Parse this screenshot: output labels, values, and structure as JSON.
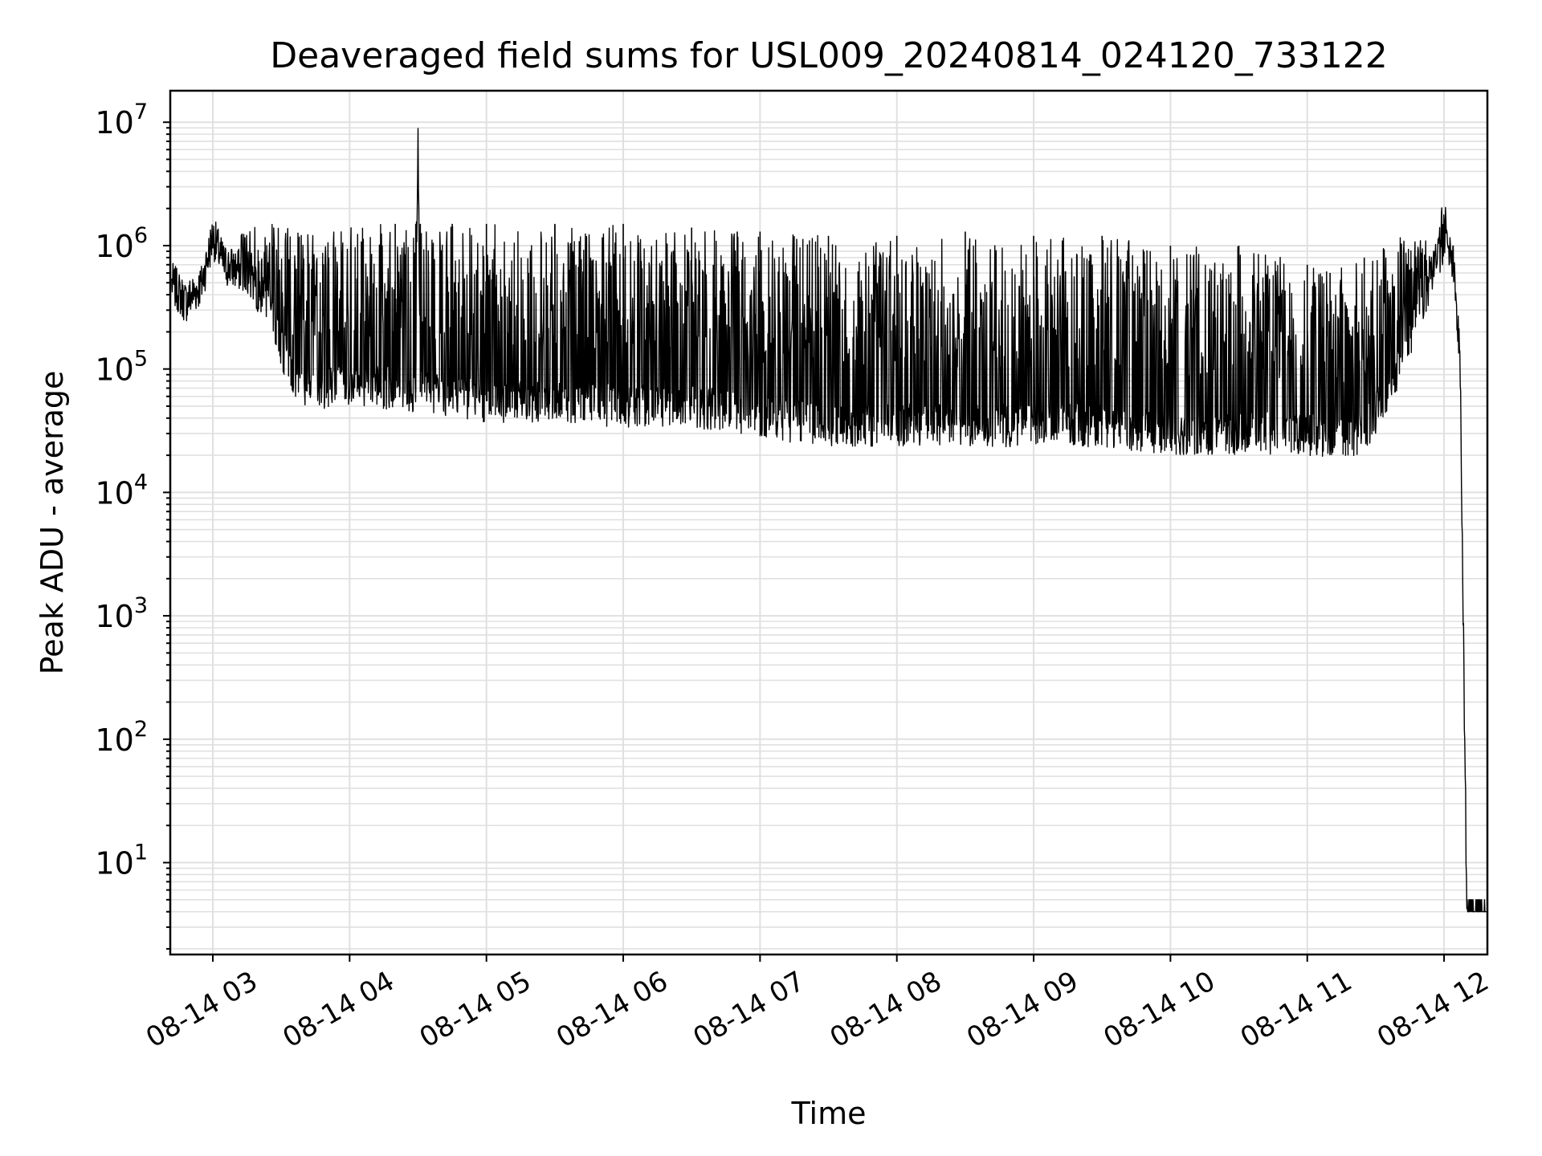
{
  "chart_data": {
    "type": "line",
    "title": "Deaveraged field sums for USL009_20240814_024120_733122",
    "xlabel": "Time",
    "ylabel": "Peak ADU - average",
    "xscale": "time",
    "yscale": "log",
    "xlim": [
      "2024-08-14 02:41:20",
      "2024-08-14 12:19:00"
    ],
    "ylim": [
      1.8,
      18000000
    ],
    "grid": true,
    "line_color": "#000000",
    "grid_color": "#e0e0e0",
    "x_ticks": [
      "08-14 03",
      "08-14 04",
      "08-14 05",
      "08-14 06",
      "08-14 07",
      "08-14 08",
      "08-14 09",
      "08-14 10",
      "08-14 11",
      "08-14 12"
    ],
    "y_ticks": [
      {
        "value": 10,
        "base": "10",
        "exp": "1"
      },
      {
        "value": 100,
        "base": "10",
        "exp": "2"
      },
      {
        "value": 1000,
        "base": "10",
        "exp": "3"
      },
      {
        "value": 10000,
        "base": "10",
        "exp": "4"
      },
      {
        "value": 100000,
        "base": "10",
        "exp": "5"
      },
      {
        "value": 1000000,
        "base": "10",
        "exp": "6"
      },
      {
        "value": 10000000,
        "base": "10",
        "exp": "7"
      }
    ],
    "series": [
      {
        "x": [
          "2024-08-14 02:42",
          "2024-08-14 02:48",
          "2024-08-14 02:55",
          "2024-08-14 03:00",
          "2024-08-14 03:05",
          "2024-08-14 03:15",
          "2024-08-14 03:25",
          "2024-08-14 03:35",
          "2024-08-14 03:45",
          "2024-08-14 04:00",
          "2024-08-14 04:20",
          "2024-08-14 04:29",
          "2024-08-14 04:30",
          "2024-08-14 04:31",
          "2024-08-14 04:45",
          "2024-08-14 05:00",
          "2024-08-14 05:30",
          "2024-08-14 06:00",
          "2024-08-14 06:30",
          "2024-08-14 06:50",
          "2024-08-14 07:00",
          "2024-08-14 07:30",
          "2024-08-14 08:00",
          "2024-08-14 08:30",
          "2024-08-14 09:00",
          "2024-08-14 09:30",
          "2024-08-14 10:00",
          "2024-08-14 10:30",
          "2024-08-14 11:00",
          "2024-08-14 11:10",
          "2024-08-14 11:25",
          "2024-08-14 11:40",
          "2024-08-14 11:55",
          "2024-08-14 12:00",
          "2024-08-14 12:04",
          "2024-08-14 12:07",
          "2024-08-14 12:10",
          "2024-08-14 12:19"
        ],
        "y": [
          500000,
          350000,
          480000,
          1200000,
          700000,
          600000,
          300000,
          80000,
          70000,
          75000,
          70000,
          65000,
          9000000,
          65000,
          60000,
          55000,
          55000,
          50000,
          50000,
          45000,
          40000,
          35000,
          35000,
          35000,
          35000,
          35000,
          30000,
          30000,
          30000,
          28000,
          30000,
          100000,
          600000,
          1100000,
          700000,
          120000,
          4,
          4
        ],
        "upper_envelope": [
          500000,
          400000,
          500000,
          1200000,
          800000,
          1500000,
          1500000,
          1400000,
          1400000,
          1500000,
          1500000,
          1500000,
          9000000,
          1500000,
          1500000,
          1500000,
          1500000,
          1500000,
          1400000,
          1300000,
          1300000,
          1200000,
          1200000,
          1300000,
          1200000,
          1200000,
          1000000,
          1000000,
          700000,
          600000,
          800000,
          1200000,
          1100000,
          2500000,
          1000000,
          200000,
          4,
          4
        ]
      }
    ]
  }
}
